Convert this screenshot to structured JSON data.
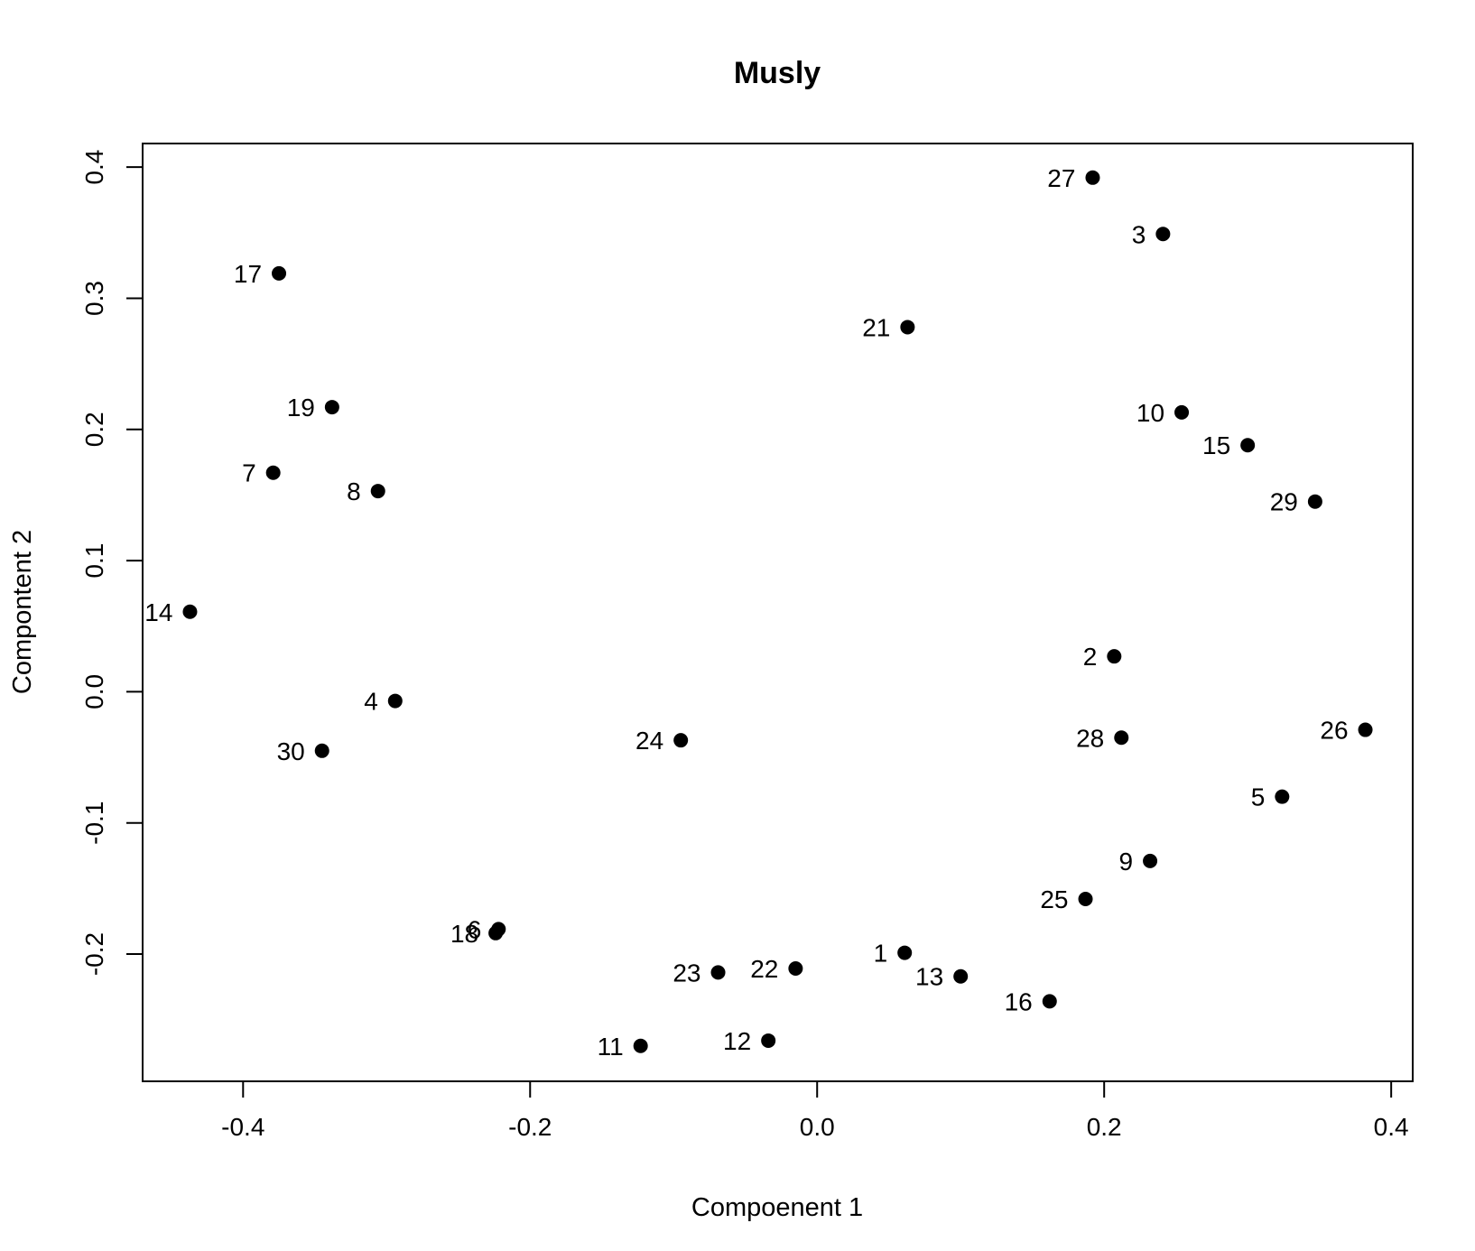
{
  "chart_data": {
    "type": "scatter",
    "title": "Musly",
    "xlabel": "Compoenent 1",
    "ylabel": "Compontent 2",
    "xlim": [
      -0.47,
      0.415
    ],
    "ylim": [
      -0.297,
      0.418
    ],
    "x_ticks": [
      -0.4,
      -0.2,
      0.0,
      0.2,
      0.4
    ],
    "y_ticks": [
      -0.2,
      -0.1,
      0.0,
      0.1,
      0.2,
      0.3,
      0.4
    ],
    "x_tick_labels": [
      "-0.4",
      "-0.2",
      "0.0",
      "0.2",
      "0.4"
    ],
    "y_tick_labels": [
      "-0.2",
      "-0.1",
      "0.0",
      "0.1",
      "0.2",
      "0.3",
      "0.4"
    ],
    "grid": false,
    "point_color": "#000000",
    "points": [
      {
        "label": "1",
        "x": 0.061,
        "y": -0.199
      },
      {
        "label": "2",
        "x": 0.207,
        "y": 0.027
      },
      {
        "label": "3",
        "x": 0.241,
        "y": 0.349
      },
      {
        "label": "4",
        "x": -0.294,
        "y": -0.007
      },
      {
        "label": "5",
        "x": 0.324,
        "y": -0.08
      },
      {
        "label": "6",
        "x": -0.222,
        "y": -0.181
      },
      {
        "label": "7",
        "x": -0.379,
        "y": 0.167
      },
      {
        "label": "8",
        "x": -0.306,
        "y": 0.153
      },
      {
        "label": "9",
        "x": 0.232,
        "y": -0.129
      },
      {
        "label": "10",
        "x": 0.254,
        "y": 0.213
      },
      {
        "label": "11",
        "x": -0.123,
        "y": -0.27
      },
      {
        "label": "12",
        "x": -0.034,
        "y": -0.266
      },
      {
        "label": "13",
        "x": 0.1,
        "y": -0.217
      },
      {
        "label": "14",
        "x": -0.437,
        "y": 0.061
      },
      {
        "label": "15",
        "x": 0.3,
        "y": 0.188
      },
      {
        "label": "16",
        "x": 0.162,
        "y": -0.236
      },
      {
        "label": "17",
        "x": -0.375,
        "y": 0.319
      },
      {
        "label": "18",
        "x": -0.224,
        "y": -0.184
      },
      {
        "label": "19",
        "x": -0.338,
        "y": 0.217
      },
      {
        "label": "21",
        "x": 0.063,
        "y": 0.278
      },
      {
        "label": "22",
        "x": -0.015,
        "y": -0.211
      },
      {
        "label": "23",
        "x": -0.069,
        "y": -0.214
      },
      {
        "label": "24",
        "x": -0.095,
        "y": -0.037
      },
      {
        "label": "25",
        "x": 0.187,
        "y": -0.158
      },
      {
        "label": "26",
        "x": 0.382,
        "y": -0.029
      },
      {
        "label": "27",
        "x": 0.192,
        "y": 0.392
      },
      {
        "label": "28",
        "x": 0.212,
        "y": -0.035
      },
      {
        "label": "29",
        "x": 0.347,
        "y": 0.145
      },
      {
        "label": "30",
        "x": -0.345,
        "y": -0.045
      }
    ]
  }
}
